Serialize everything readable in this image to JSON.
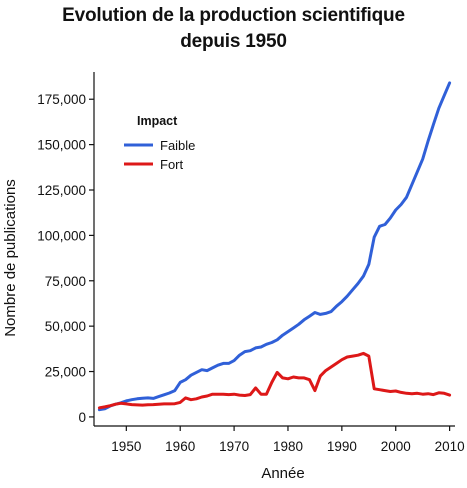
{
  "chart_data": {
    "type": "line",
    "title": "Evolution de la production scientifique",
    "subtitle": "depuis 1950",
    "xlabel": "Année",
    "ylabel": "Nombre de publications",
    "xlim": [
      1944,
      2011
    ],
    "ylim": [
      -5000,
      190000
    ],
    "x_ticks": [
      1950,
      1960,
      1970,
      1980,
      1990,
      2000,
      2010
    ],
    "x_tick_labels": [
      "1950",
      "1960",
      "1970",
      "1980",
      "1990",
      "2000",
      "2010"
    ],
    "y_ticks": [
      0,
      25000,
      50000,
      75000,
      100000,
      125000,
      150000,
      175000
    ],
    "y_tick_labels": [
      "0",
      "25,000",
      "50,000",
      "75,000",
      "100,000",
      "125,000",
      "150,000",
      "175,000"
    ],
    "grid": false,
    "legend": {
      "title": "Impact",
      "placement": "top-left"
    },
    "x": [
      1945,
      1946,
      1947,
      1948,
      1949,
      1950,
      1951,
      1952,
      1953,
      1954,
      1955,
      1956,
      1957,
      1958,
      1959,
      1960,
      1961,
      1962,
      1963,
      1964,
      1965,
      1966,
      1967,
      1968,
      1969,
      1970,
      1971,
      1972,
      1973,
      1974,
      1975,
      1976,
      1977,
      1978,
      1979,
      1980,
      1981,
      1982,
      1983,
      1984,
      1985,
      1986,
      1987,
      1988,
      1989,
      1990,
      1991,
      1992,
      1993,
      1994,
      1995,
      1996,
      1997,
      1998,
      1999,
      2000,
      2001,
      2002,
      2003,
      2004,
      2005,
      2006,
      2007,
      2008,
      2009,
      2010
    ],
    "series": [
      {
        "name": "Faible",
        "color": "#3060d8",
        "values": [
          4000,
          4500,
          6000,
          7000,
          7800,
          8800,
          9500,
          10000,
          10300,
          10500,
          10200,
          11200,
          12200,
          13200,
          14500,
          19000,
          20500,
          23000,
          24500,
          26000,
          25500,
          27000,
          28500,
          29500,
          29500,
          31000,
          34000,
          36000,
          36500,
          38000,
          38500,
          40000,
          41000,
          42500,
          45000,
          47000,
          49000,
          51000,
          53500,
          55500,
          57500,
          56500,
          57000,
          58000,
          61000,
          63500,
          66500,
          70000,
          73500,
          77500,
          84000,
          99000,
          105000,
          106000,
          109500,
          114000,
          117000,
          121000,
          128000,
          135000,
          142000,
          152000,
          161000,
          170000,
          177000,
          184000
        ]
      },
      {
        "name": "Fort",
        "color": "#dd1818",
        "values": [
          5000,
          5500,
          6200,
          7000,
          7500,
          7200,
          6800,
          6600,
          6500,
          6700,
          6800,
          7000,
          7200,
          7200,
          7300,
          8000,
          10500,
          9500,
          10000,
          11000,
          11500,
          12500,
          12500,
          12500,
          12300,
          12500,
          12000,
          11800,
          12300,
          16000,
          12500,
          12500,
          19000,
          24500,
          21500,
          21000,
          22000,
          21500,
          21500,
          20500,
          14500,
          22500,
          25500,
          27500,
          29500,
          31500,
          33000,
          33500,
          34000,
          35000,
          33500,
          15500,
          15000,
          14500,
          14000,
          14300,
          13500,
          13000,
          12800,
          13000,
          12500,
          12800,
          12300,
          13300,
          13000,
          12000
        ]
      }
    ]
  }
}
